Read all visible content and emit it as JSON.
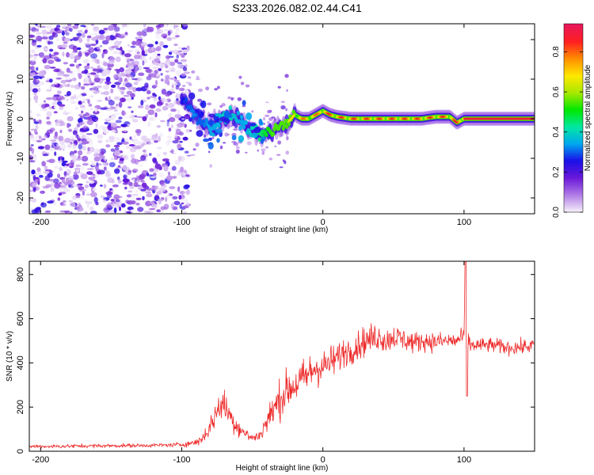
{
  "figure": {
    "title": "S233.2026.082.02.44.C41"
  },
  "chart_data": [
    {
      "type": "heatmap",
      "title": "S233.2026.082.02.44.C41",
      "xlabel": "Height of straight line (km)",
      "ylabel": "Frequency (Hz)",
      "xlim": [
        -208,
        150
      ],
      "ylim": [
        -24,
        24
      ],
      "xticks": [
        -200,
        -100,
        0,
        100
      ],
      "yticks": [
        -20,
        -10,
        0,
        10,
        20
      ],
      "colorbar": {
        "label": "Normalized spectral amplitude",
        "range": [
          0.0,
          0.94
        ],
        "ticks": [
          0.0,
          0.2,
          0.4,
          0.6,
          0.8
        ],
        "colormap": [
          "#f5f0fa",
          "#b07ae6",
          "#6a18d8",
          "#1a10e8",
          "#00a8f0",
          "#00e8a0",
          "#00e800",
          "#a8e800",
          "#ffe800",
          "#ff9000",
          "#ff2020",
          "#e8185a"
        ]
      },
      "noise_region": {
        "x_range": [
          -208,
          -95
        ],
        "freq_range": [
          -24,
          24
        ],
        "amplitude_range": [
          0.0,
          0.25
        ]
      },
      "signal_ridge": {
        "x": [
          -100,
          -95,
          -90,
          -85,
          -80,
          -75,
          -70,
          -65,
          -60,
          -55,
          -50,
          -45,
          -40,
          -35,
          -30,
          -25,
          -20,
          -15,
          -10,
          -5,
          0,
          5,
          10,
          20,
          30,
          40,
          50,
          60,
          70,
          80,
          90,
          95,
          100,
          120,
          150
        ],
        "frequency": [
          5,
          3,
          1,
          -1,
          -2,
          -1,
          0,
          1,
          0,
          -2,
          -3,
          -4,
          -4,
          -3,
          -2,
          -1,
          1,
          0,
          0,
          1,
          2,
          1,
          0.5,
          0,
          0,
          0,
          0,
          0,
          0,
          0.5,
          0.5,
          -1,
          0,
          0,
          0
        ],
        "amplitude": [
          0.25,
          0.3,
          0.3,
          0.3,
          0.35,
          0.35,
          0.4,
          0.4,
          0.35,
          0.35,
          0.4,
          0.45,
          0.5,
          0.55,
          0.6,
          0.65,
          0.75,
          0.8,
          0.8,
          0.8,
          0.85,
          0.85,
          0.85,
          0.85,
          0.85,
          0.85,
          0.85,
          0.85,
          0.85,
          0.85,
          0.85,
          0.85,
          0.9,
          0.9,
          0.9
        ]
      }
    },
    {
      "type": "line",
      "xlabel": "Height of straight line (km)",
      "ylabel": "SNR (10 * v/v)",
      "xlim": [
        -208,
        150
      ],
      "ylim": [
        0,
        860
      ],
      "xticks": [
        -200,
        -100,
        0,
        100
      ],
      "yticks": [
        0,
        200,
        400,
        600,
        800
      ],
      "color": "#ee2a2a",
      "series": [
        {
          "name": "SNR",
          "x": [
            -208,
            -190,
            -170,
            -150,
            -130,
            -110,
            -100,
            -90,
            -85,
            -80,
            -75,
            -72,
            -68,
            -65,
            -60,
            -55,
            -50,
            -45,
            -40,
            -35,
            -30,
            -25,
            -20,
            -15,
            -10,
            -5,
            0,
            5,
            10,
            15,
            20,
            25,
            30,
            35,
            40,
            45,
            50,
            55,
            60,
            65,
            70,
            80,
            90,
            95,
            100,
            101,
            102,
            103,
            104,
            110,
            120,
            130,
            140,
            150
          ],
          "y": [
            22,
            22,
            24,
            25,
            26,
            28,
            30,
            40,
            60,
            110,
            180,
            220,
            190,
            150,
            110,
            80,
            60,
            70,
            130,
            190,
            240,
            280,
            300,
            320,
            350,
            380,
            380,
            400,
            420,
            450,
            460,
            480,
            500,
            510,
            520,
            500,
            520,
            510,
            500,
            490,
            500,
            495,
            500,
            500,
            520,
            860,
            250,
            520,
            480,
            480,
            480,
            470,
            470,
            480
          ],
          "noise_amplitude": [
            8,
            8,
            8,
            8,
            8,
            8,
            10,
            15,
            25,
            40,
            60,
            70,
            60,
            50,
            40,
            25,
            20,
            25,
            50,
            70,
            80,
            80,
            80,
            80,
            80,
            80,
            70,
            70,
            65,
            60,
            60,
            60,
            60,
            60,
            55,
            55,
            50,
            50,
            45,
            45,
            40,
            40,
            35,
            35,
            35,
            0,
            0,
            35,
            30,
            30,
            30,
            30,
            30,
            30
          ]
        }
      ]
    }
  ]
}
